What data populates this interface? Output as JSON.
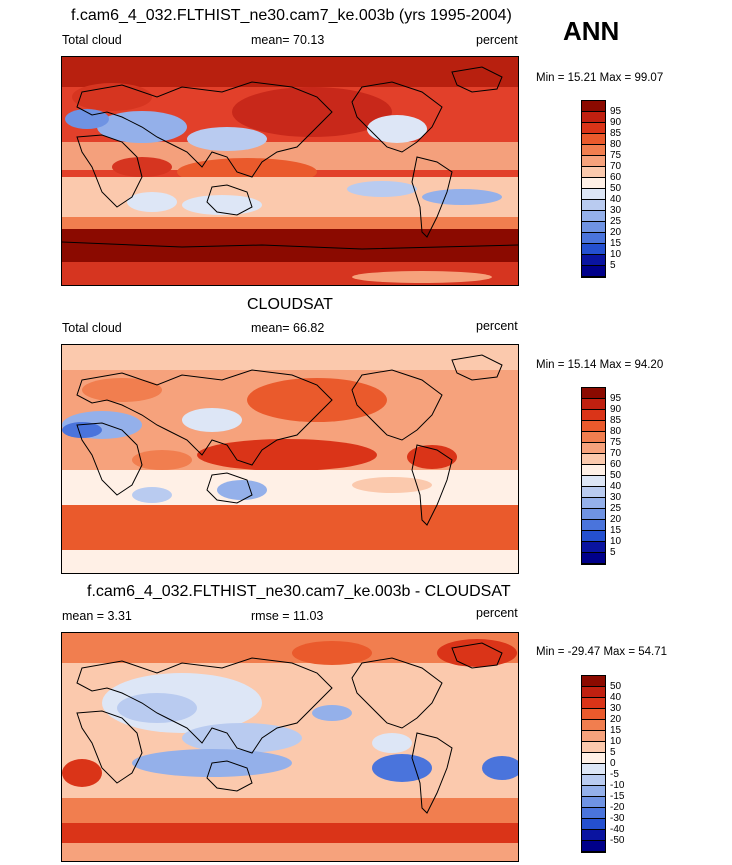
{
  "season": "ANN",
  "icons": {
    "coastline": "coastline-overlay"
  },
  "panels": [
    {
      "title": "f.cam6_4_032.FLTHIST_ne30.cam7_ke.003b (yrs 1995-2004)",
      "left_label": "Total cloud",
      "center_label": "mean=  70.13",
      "right_label": "percent",
      "minmax": "Min =  15.21 Max =  99.07",
      "levels": [
        "95",
        "90",
        "85",
        "80",
        "75",
        "70",
        "60",
        "50",
        "40",
        "30",
        "25",
        "20",
        "15",
        "10",
        "5"
      ],
      "colors": [
        "#8b0a00",
        "#c02010",
        "#da3418",
        "#ea5a2c",
        "#f17e4f",
        "#f6a27c",
        "#fbc9ad",
        "#fff0e6",
        "#dde6f6",
        "#b9cbf0",
        "#94b0ea",
        "#6f93e3",
        "#4a74dc",
        "#2450d0",
        "#0a14a0",
        "#00008a"
      ]
    },
    {
      "title": "CLOUDSAT",
      "left_label": "Total cloud",
      "center_label": "mean=  66.82",
      "right_label": "percent",
      "minmax": "Min =  15.14 Max =  94.20",
      "levels": [
        "95",
        "90",
        "85",
        "80",
        "75",
        "70",
        "60",
        "50",
        "40",
        "30",
        "25",
        "20",
        "15",
        "10",
        "5"
      ],
      "colors": [
        "#8b0a00",
        "#c02010",
        "#da3418",
        "#ea5a2c",
        "#f17e4f",
        "#f6a27c",
        "#fbc9ad",
        "#fff0e6",
        "#dde6f6",
        "#b9cbf0",
        "#94b0ea",
        "#6f93e3",
        "#4a74dc",
        "#2450d0",
        "#0a14a0",
        "#00008a"
      ]
    },
    {
      "title": "f.cam6_4_032.FLTHIST_ne30.cam7_ke.003b - CLOUDSAT",
      "left_label": "mean =   3.31",
      "center_label": "rmse =  11.03",
      "right_label": "percent",
      "minmax": "Min = -29.47 Max =  54.71",
      "levels": [
        "50",
        "40",
        "30",
        "20",
        "15",
        "10",
        "5",
        "0",
        "-5",
        "-10",
        "-15",
        "-20",
        "-30",
        "-40",
        "-50"
      ],
      "colors": [
        "#8b0a00",
        "#c02010",
        "#da3418",
        "#ea5a2c",
        "#f17e4f",
        "#f6a27c",
        "#fbc9ad",
        "#fff0e6",
        "#dde6f6",
        "#b9cbf0",
        "#94b0ea",
        "#6f93e3",
        "#4a74dc",
        "#2450d0",
        "#0a14a0",
        "#00008a"
      ]
    }
  ]
}
